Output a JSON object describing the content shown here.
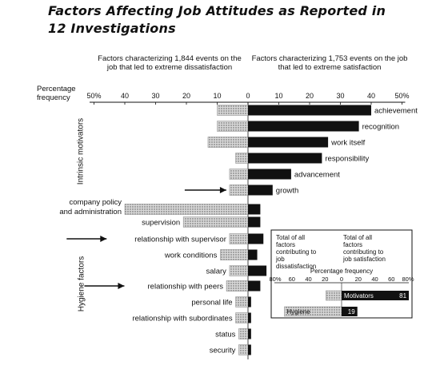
{
  "title_line1": "Factors Affecting Job Attitudes as Reported in",
  "title_line2": "12 Investigations",
  "header_left": "Factors characterizing 1,844 events on the job that led to extreme dissatisfaction",
  "header_right": "Factors characterizing 1,753 events on the job that led to extreme satisfaction",
  "axis_label_line1": "Percentage",
  "axis_label_line2": "frequency",
  "group_motivators": "Intrinsic motivators",
  "group_hygiene": "Hygiene factors",
  "colors": {
    "dissatisfaction": "#bdbdbd",
    "satisfaction": "#111111",
    "text": "#111111"
  },
  "chart_data": {
    "type": "bar",
    "orientation": "horizontal-diverging",
    "xlim": [
      -50,
      50
    ],
    "tick_labels": [
      "50%",
      "40",
      "30",
      "20",
      "10",
      "0",
      "10",
      "20",
      "30",
      "40",
      "50%"
    ],
    "categories": [
      {
        "label": "achievement",
        "dissatisfaction": 10,
        "satisfaction": 40,
        "group": "motivator",
        "arrow": false
      },
      {
        "label": "recognition",
        "dissatisfaction": 10,
        "satisfaction": 36,
        "group": "motivator",
        "arrow": false
      },
      {
        "label": "work itself",
        "dissatisfaction": 13,
        "satisfaction": 26,
        "group": "motivator",
        "arrow": false
      },
      {
        "label": "responsibility",
        "dissatisfaction": 4,
        "satisfaction": 24,
        "group": "motivator",
        "arrow": false
      },
      {
        "label": "advancement",
        "dissatisfaction": 6,
        "satisfaction": 14,
        "group": "motivator",
        "arrow": false
      },
      {
        "label": "growth",
        "dissatisfaction": 6,
        "satisfaction": 8,
        "group": "motivator",
        "arrow": true
      },
      {
        "label": "company policy and administration",
        "dissatisfaction": 40,
        "satisfaction": 4,
        "group": "hygiene",
        "arrow": false
      },
      {
        "label": "supervision",
        "dissatisfaction": 21,
        "satisfaction": 4,
        "group": "hygiene",
        "arrow": false
      },
      {
        "label": "relationship with supervisor",
        "dissatisfaction": 6,
        "satisfaction": 5,
        "group": "hygiene",
        "arrow": true
      },
      {
        "label": "work conditions",
        "dissatisfaction": 9,
        "satisfaction": 3,
        "group": "hygiene",
        "arrow": false
      },
      {
        "label": "salary",
        "dissatisfaction": 6,
        "satisfaction": 6,
        "group": "hygiene",
        "arrow": false
      },
      {
        "label": "relationship with peers",
        "dissatisfaction": 7,
        "satisfaction": 4,
        "group": "hygiene",
        "arrow": true
      },
      {
        "label": "personal life",
        "dissatisfaction": 4,
        "satisfaction": 1,
        "group": "hygiene",
        "arrow": false
      },
      {
        "label": "relationship with subordinates",
        "dissatisfaction": 4,
        "satisfaction": 1,
        "group": "hygiene",
        "arrow": false
      },
      {
        "label": "status",
        "dissatisfaction": 3,
        "satisfaction": 1,
        "group": "hygiene",
        "arrow": false
      },
      {
        "label": "security",
        "dissatisfaction": 3,
        "satisfaction": 1,
        "group": "hygiene",
        "arrow": false
      }
    ],
    "inset": {
      "header_left": "Total of all factors contributing to job dissatisfaction",
      "header_right": "Total of all factors contributing to job satisfaction",
      "axis_title": "Percentage frequency",
      "tick_labels": [
        "80%",
        "60",
        "40",
        "20",
        "0",
        "20",
        "40",
        "60",
        "80%"
      ],
      "xlim": [
        -80,
        80
      ],
      "bars": [
        {
          "label": "Motivators",
          "dissatisfaction": 19,
          "satisfaction": 81,
          "value_label": "81"
        },
        {
          "label": "Hygiene",
          "dissatisfaction": 69,
          "satisfaction": 19,
          "value_label": "19"
        }
      ]
    }
  }
}
